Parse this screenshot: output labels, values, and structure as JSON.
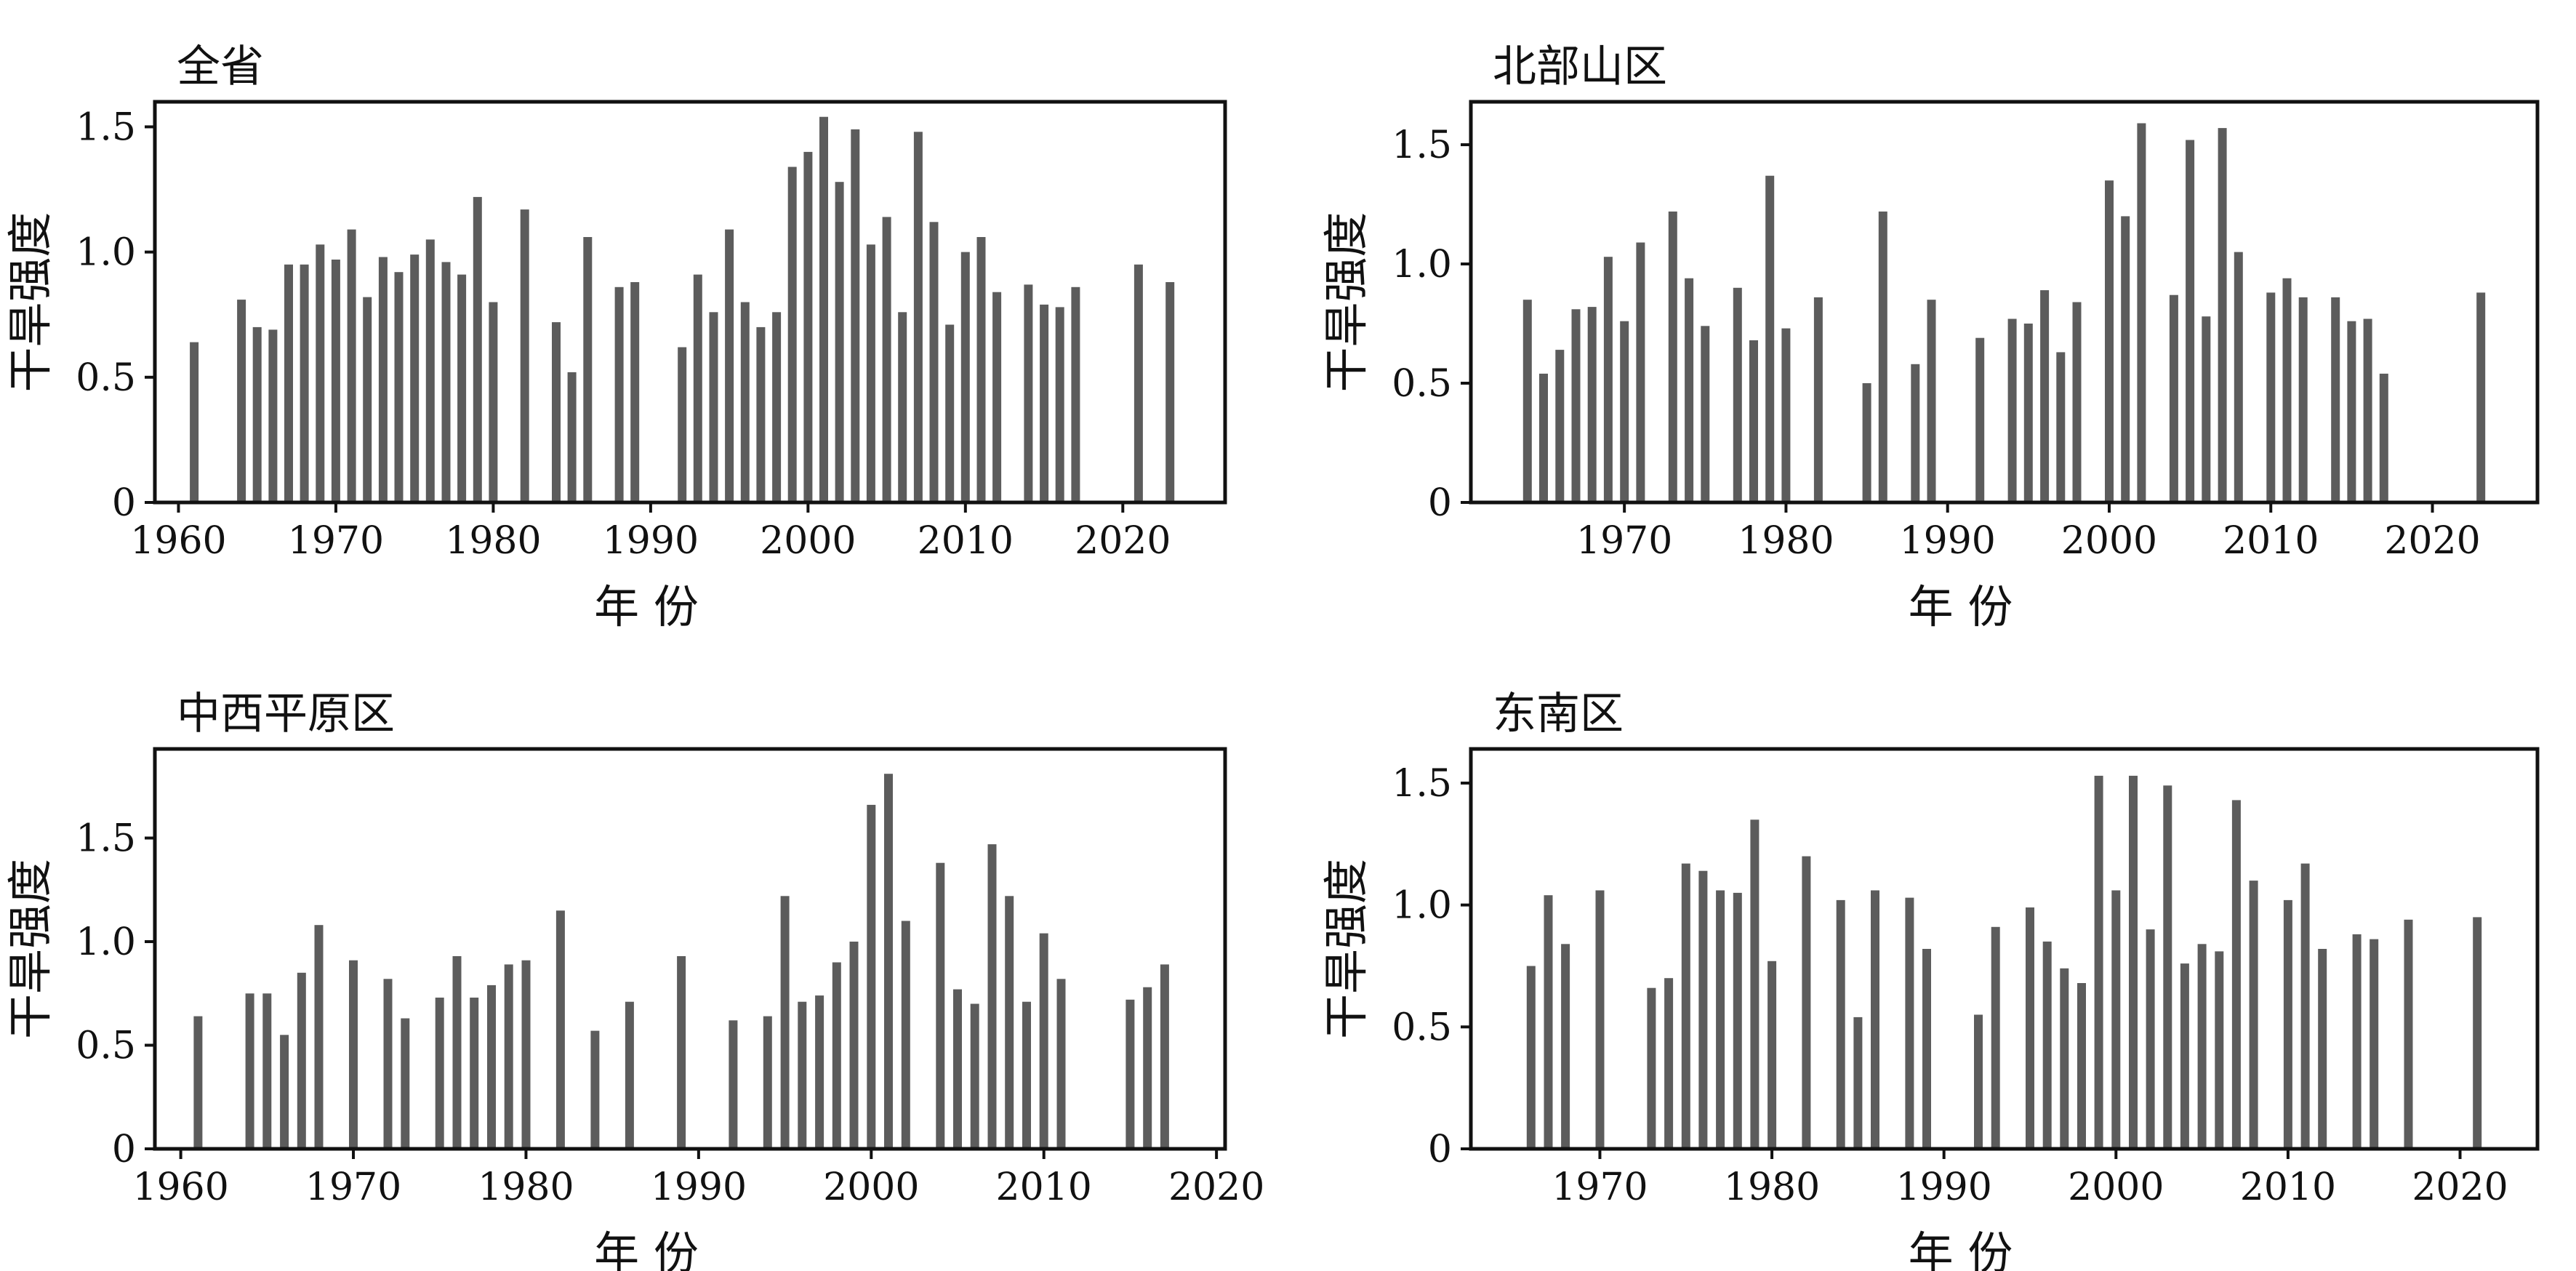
{
  "chart_data": [
    {
      "type": "bar",
      "title": "全省",
      "xlabel": "年 份",
      "ylabel": "干旱强度",
      "xlim": [
        1958.5,
        2026.5
      ],
      "ylim": [
        0,
        1.6
      ],
      "xticks": [
        "1960",
        "1970",
        "1980",
        "1990",
        "2000",
        "2010",
        "2020"
      ],
      "yticks": [
        "0",
        "0.5",
        "1.0",
        "1.5"
      ],
      "x": [
        1961,
        1964,
        1965,
        1966,
        1967,
        1968,
        1969,
        1970,
        1971,
        1972,
        1973,
        1974,
        1975,
        1976,
        1977,
        1978,
        1979,
        1980,
        1982,
        1984,
        1985,
        1986,
        1988,
        1989,
        1992,
        1993,
        1994,
        1995,
        1996,
        1997,
        1998,
        1999,
        2000,
        2001,
        2002,
        2003,
        2004,
        2005,
        2006,
        2007,
        2008,
        2009,
        2010,
        2011,
        2012,
        2014,
        2015,
        2016,
        2017,
        2021,
        2023
      ],
      "values": [
        0.64,
        0.81,
        0.7,
        0.69,
        0.95,
        0.95,
        1.03,
        0.97,
        1.09,
        0.82,
        0.98,
        0.92,
        0.99,
        1.05,
        0.96,
        0.91,
        1.22,
        0.8,
        1.17,
        0.72,
        0.52,
        1.06,
        0.86,
        0.88,
        0.62,
        0.91,
        0.76,
        1.09,
        0.8,
        0.7,
        0.76,
        1.34,
        1.4,
        1.54,
        1.28,
        1.49,
        1.03,
        1.14,
        0.76,
        1.48,
        1.12,
        0.71,
        1.0,
        1.06,
        0.84,
        0.87,
        0.79,
        0.78,
        0.86,
        0.95,
        0.88
      ]
    },
    {
      "type": "bar",
      "title": "北部山区",
      "xlabel": "年 份",
      "ylabel": "干旱强度",
      "xlim": [
        1960.5,
        2026.5
      ],
      "ylim": [
        0,
        1.68
      ],
      "xticks": [
        "1970",
        "1980",
        "1990",
        "2000",
        "2010",
        "2020"
      ],
      "yticks": [
        "0",
        "0.5",
        "1.0",
        "1.5"
      ],
      "x": [
        1964,
        1965,
        1966,
        1967,
        1968,
        1969,
        1970,
        1971,
        1973,
        1974,
        1975,
        1977,
        1978,
        1979,
        1980,
        1982,
        1985,
        1986,
        1988,
        1989,
        1992,
        1994,
        1995,
        1996,
        1997,
        1998,
        2000,
        2001,
        2002,
        2004,
        2005,
        2006,
        2007,
        2008,
        2010,
        2011,
        2012,
        2014,
        2015,
        2016,
        2017,
        2023
      ],
      "values": [
        0.85,
        0.54,
        0.64,
        0.81,
        0.82,
        1.03,
        0.76,
        1.09,
        1.22,
        0.94,
        0.74,
        0.9,
        0.68,
        1.37,
        0.73,
        0.86,
        0.5,
        1.22,
        0.58,
        0.85,
        0.69,
        0.77,
        0.75,
        0.89,
        0.63,
        0.84,
        1.35,
        1.2,
        1.59,
        0.87,
        1.52,
        0.78,
        1.57,
        1.05,
        0.88,
        0.94,
        0.86,
        0.86,
        0.76,
        0.77,
        0.54,
        0.88
      ]
    },
    {
      "type": "bar",
      "title": "中西平原区",
      "xlabel": "年 份",
      "ylabel": "干旱强度",
      "xlim": [
        1958.5,
        2020.5
      ],
      "ylim": [
        0,
        1.93
      ],
      "xticks": [
        "1960",
        "1970",
        "1980",
        "1990",
        "2000",
        "2010",
        "2020"
      ],
      "yticks": [
        "0",
        "0.5",
        "1.0",
        "1.5"
      ],
      "x": [
        1961,
        1964,
        1965,
        1966,
        1967,
        1968,
        1970,
        1972,
        1973,
        1975,
        1976,
        1977,
        1978,
        1979,
        1980,
        1982,
        1984,
        1986,
        1989,
        1992,
        1994,
        1995,
        1996,
        1997,
        1998,
        1999,
        2000,
        2001,
        2002,
        2004,
        2005,
        2006,
        2007,
        2008,
        2009,
        2010,
        2011,
        2015,
        2016,
        2017
      ],
      "values": [
        0.64,
        0.75,
        0.75,
        0.55,
        0.85,
        1.08,
        0.91,
        0.82,
        0.63,
        0.73,
        0.93,
        0.73,
        0.79,
        0.89,
        0.91,
        1.15,
        0.57,
        0.71,
        0.93,
        0.62,
        0.64,
        1.22,
        0.71,
        0.74,
        0.9,
        1.0,
        1.66,
        1.81,
        1.1,
        1.38,
        0.77,
        0.7,
        1.47,
        1.22,
        0.71,
        1.04,
        0.82,
        0.72,
        0.78,
        0.89
      ]
    },
    {
      "type": "bar",
      "title": "东南区",
      "xlabel": "年 份",
      "ylabel": "干旱强度",
      "xlim": [
        1962.5,
        2024.5
      ],
      "ylim": [
        0,
        1.64
      ],
      "xticks": [
        "1970",
        "1980",
        "1990",
        "2000",
        "2010",
        "2020"
      ],
      "yticks": [
        "0",
        "0.5",
        "1.0",
        "1.5"
      ],
      "x": [
        1966,
        1967,
        1968,
        1970,
        1973,
        1974,
        1975,
        1976,
        1977,
        1978,
        1979,
        1980,
        1982,
        1984,
        1985,
        1986,
        1988,
        1989,
        1992,
        1993,
        1995,
        1996,
        1997,
        1998,
        1999,
        2000,
        2001,
        2002,
        2003,
        2004,
        2005,
        2006,
        2007,
        2008,
        2010,
        2011,
        2012,
        2014,
        2015,
        2017,
        2021
      ],
      "values": [
        0.75,
        1.04,
        0.84,
        1.06,
        0.66,
        0.7,
        1.17,
        1.14,
        1.06,
        1.05,
        1.35,
        0.77,
        1.2,
        1.02,
        0.54,
        1.06,
        1.03,
        0.82,
        0.55,
        0.91,
        0.99,
        0.85,
        0.74,
        0.68,
        1.53,
        1.06,
        1.53,
        0.9,
        1.49,
        0.76,
        0.84,
        0.81,
        1.43,
        1.1,
        1.02,
        1.17,
        0.82,
        0.88,
        0.86,
        0.94,
        0.95
      ]
    }
  ]
}
